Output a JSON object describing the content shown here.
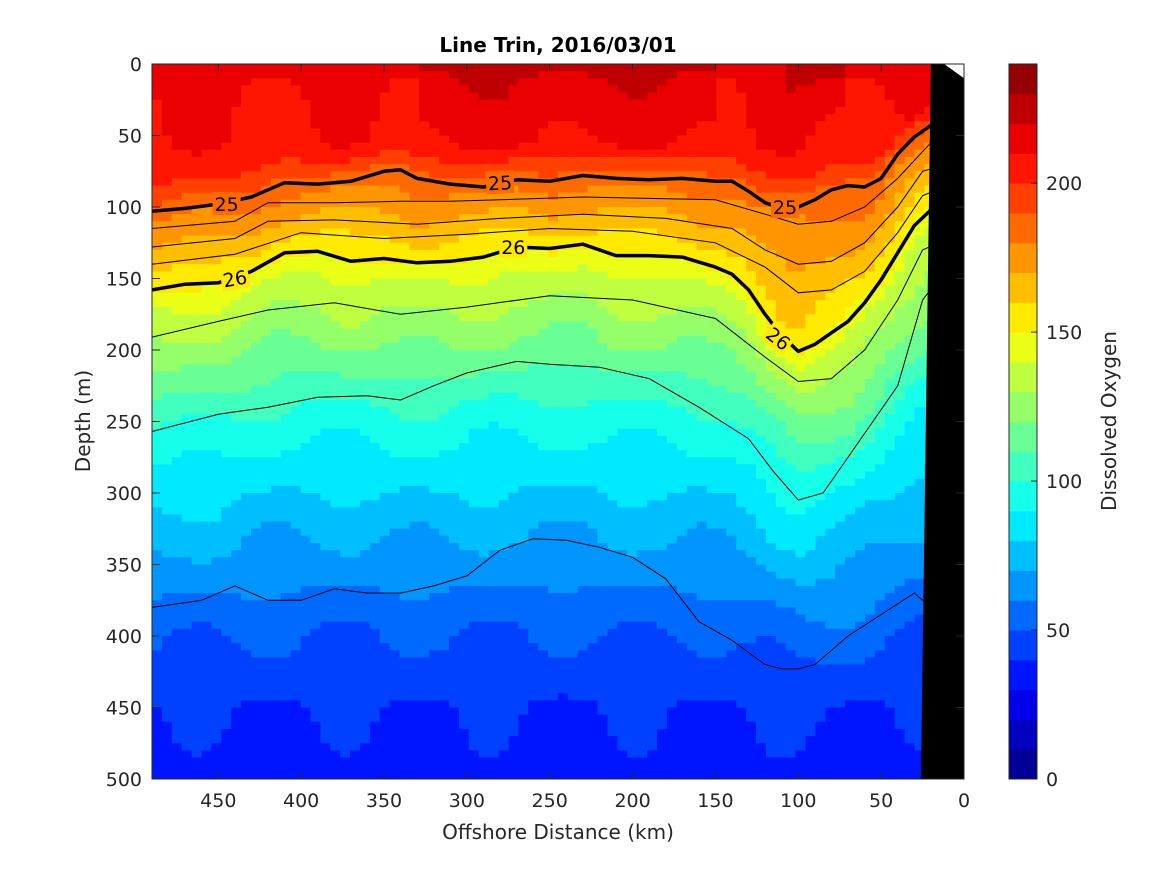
{
  "chart_data": {
    "type": "heatmap",
    "title": "Line Trin, 2016/03/01",
    "xlabel": "Offshore Distance (km)",
    "ylabel": "Depth (m)",
    "colorbar_label": "Dissolved Oxygen",
    "xlim": [
      490,
      0
    ],
    "ylim": [
      0,
      500
    ],
    "x_ticks": [
      "450",
      "400",
      "350",
      "300",
      "250",
      "200",
      "150",
      "100",
      "50",
      "0"
    ],
    "y_ticks": [
      "0",
      "50",
      "100",
      "150",
      "200",
      "250",
      "300",
      "350",
      "400",
      "450",
      "500"
    ],
    "colorbar_range": [
      0,
      240
    ],
    "colorbar_ticks": [
      "0",
      "50",
      "100",
      "150",
      "200"
    ],
    "colorbar_levels": 24,
    "colormap": "jet",
    "grid": false,
    "bathymetry_color": "#000000",
    "bathymetry": {
      "x_km": [
        0,
        20,
        26
      ],
      "depth_m": [
        0,
        0,
        500
      ]
    },
    "oxygen_profile": {
      "depth_m": [
        0,
        60,
        75,
        85,
        100,
        115,
        130,
        150,
        200,
        250,
        300,
        350,
        400,
        450,
        500
      ],
      "oxygen": [
        212,
        208,
        195,
        185,
        175,
        165,
        155,
        140,
        118,
        95,
        80,
        65,
        50,
        40,
        35
      ]
    },
    "isopycnal_25": {
      "label": "25",
      "x_km": [
        490,
        470,
        450,
        430,
        410,
        390,
        370,
        350,
        340,
        330,
        310,
        290,
        270,
        250,
        230,
        210,
        190,
        170,
        150,
        140,
        130,
        120,
        110,
        100,
        90,
        80,
        70,
        60,
        50,
        40,
        30,
        20,
        10
      ],
      "depth_m": [
        103,
        101,
        98,
        93,
        83,
        84,
        82,
        75,
        74,
        80,
        84,
        86,
        81,
        82,
        78,
        80,
        81,
        80,
        82,
        82,
        89,
        97,
        101,
        100,
        95,
        88,
        85,
        86,
        80,
        63,
        51,
        43,
        42
      ]
    },
    "isopycnal_26": {
      "label": "26",
      "x_km": [
        490,
        470,
        450,
        430,
        410,
        390,
        370,
        350,
        330,
        310,
        290,
        270,
        250,
        230,
        210,
        190,
        170,
        150,
        140,
        130,
        120,
        110,
        100,
        90,
        80,
        70,
        60,
        50,
        40,
        30,
        20,
        10
      ],
      "depth_m": [
        158,
        154,
        153,
        145,
        132,
        131,
        138,
        136,
        139,
        138,
        135,
        128,
        129,
        126,
        134,
        134,
        135,
        142,
        147,
        158,
        175,
        190,
        201,
        196,
        188,
        180,
        167,
        151,
        132,
        113,
        102,
        110
      ]
    },
    "thin_contours": [
      {
        "x_km": [
          490,
          440,
          420,
          380,
          340,
          310,
          280,
          230,
          190,
          150,
          120,
          100,
          80,
          60,
          40,
          20,
          10
        ],
        "depth_m": [
          115,
          110,
          97,
          97,
          96,
          96,
          95,
          93,
          94,
          95,
          105,
          112,
          110,
          100,
          80,
          55,
          52
        ]
      },
      {
        "x_km": [
          490,
          440,
          420,
          380,
          330,
          280,
          230,
          180,
          140,
          120,
          100,
          80,
          60,
          40,
          25,
          10
        ],
        "depth_m": [
          128,
          122,
          110,
          109,
          112,
          108,
          105,
          108,
          115,
          130,
          140,
          138,
          125,
          100,
          75,
          70
        ]
      },
      {
        "x_km": [
          490,
          440,
          400,
          350,
          300,
          250,
          200,
          150,
          120,
          100,
          80,
          60,
          40,
          25,
          10
        ],
        "depth_m": [
          140,
          133,
          118,
          122,
          119,
          115,
          117,
          125,
          142,
          160,
          158,
          145,
          118,
          92,
          85
        ]
      },
      {
        "x_km": [
          490,
          450,
          420,
          380,
          340,
          300,
          250,
          200,
          150,
          120,
          100,
          80,
          60,
          40,
          25,
          15
        ],
        "depth_m": [
          191,
          180,
          172,
          167,
          175,
          170,
          162,
          165,
          178,
          205,
          222,
          220,
          200,
          165,
          130,
          125
        ]
      },
      {
        "x_km": [
          490,
          450,
          420,
          390,
          360,
          340,
          320,
          300,
          270,
          250,
          220,
          190,
          160,
          130,
          115,
          100,
          85,
          70,
          55,
          40,
          25,
          15
        ],
        "depth_m": [
          257,
          245,
          240,
          233,
          232,
          235,
          225,
          216,
          208,
          210,
          212,
          220,
          240,
          262,
          285,
          305,
          300,
          275,
          250,
          225,
          165,
          150
        ]
      },
      {
        "x_km": [
          490,
          460,
          440,
          420,
          400,
          380,
          360,
          340,
          320,
          300,
          280,
          260,
          240,
          220,
          200,
          180,
          160,
          140,
          120,
          110,
          100,
          90,
          70,
          50,
          30,
          20
        ],
        "depth_m": [
          380,
          375,
          365,
          375,
          375,
          367,
          370,
          370,
          365,
          358,
          340,
          332,
          333,
          338,
          345,
          360,
          390,
          403,
          420,
          423,
          423,
          420,
          400,
          385,
          370,
          380
        ]
      }
    ],
    "contour_labels": [
      {
        "text": "25",
        "x_km": 445,
        "depth_m": 98,
        "angle": 0
      },
      {
        "text": "25",
        "x_km": 280,
        "depth_m": 83,
        "angle": -3
      },
      {
        "text": "25",
        "x_km": 108,
        "depth_m": 100,
        "angle": 0
      },
      {
        "text": "26",
        "x_km": 440,
        "depth_m": 150,
        "angle": -10
      },
      {
        "text": "26",
        "x_km": 272,
        "depth_m": 128,
        "angle": 0
      },
      {
        "text": "26",
        "x_km": 112,
        "depth_m": 192,
        "angle": 38
      }
    ]
  }
}
